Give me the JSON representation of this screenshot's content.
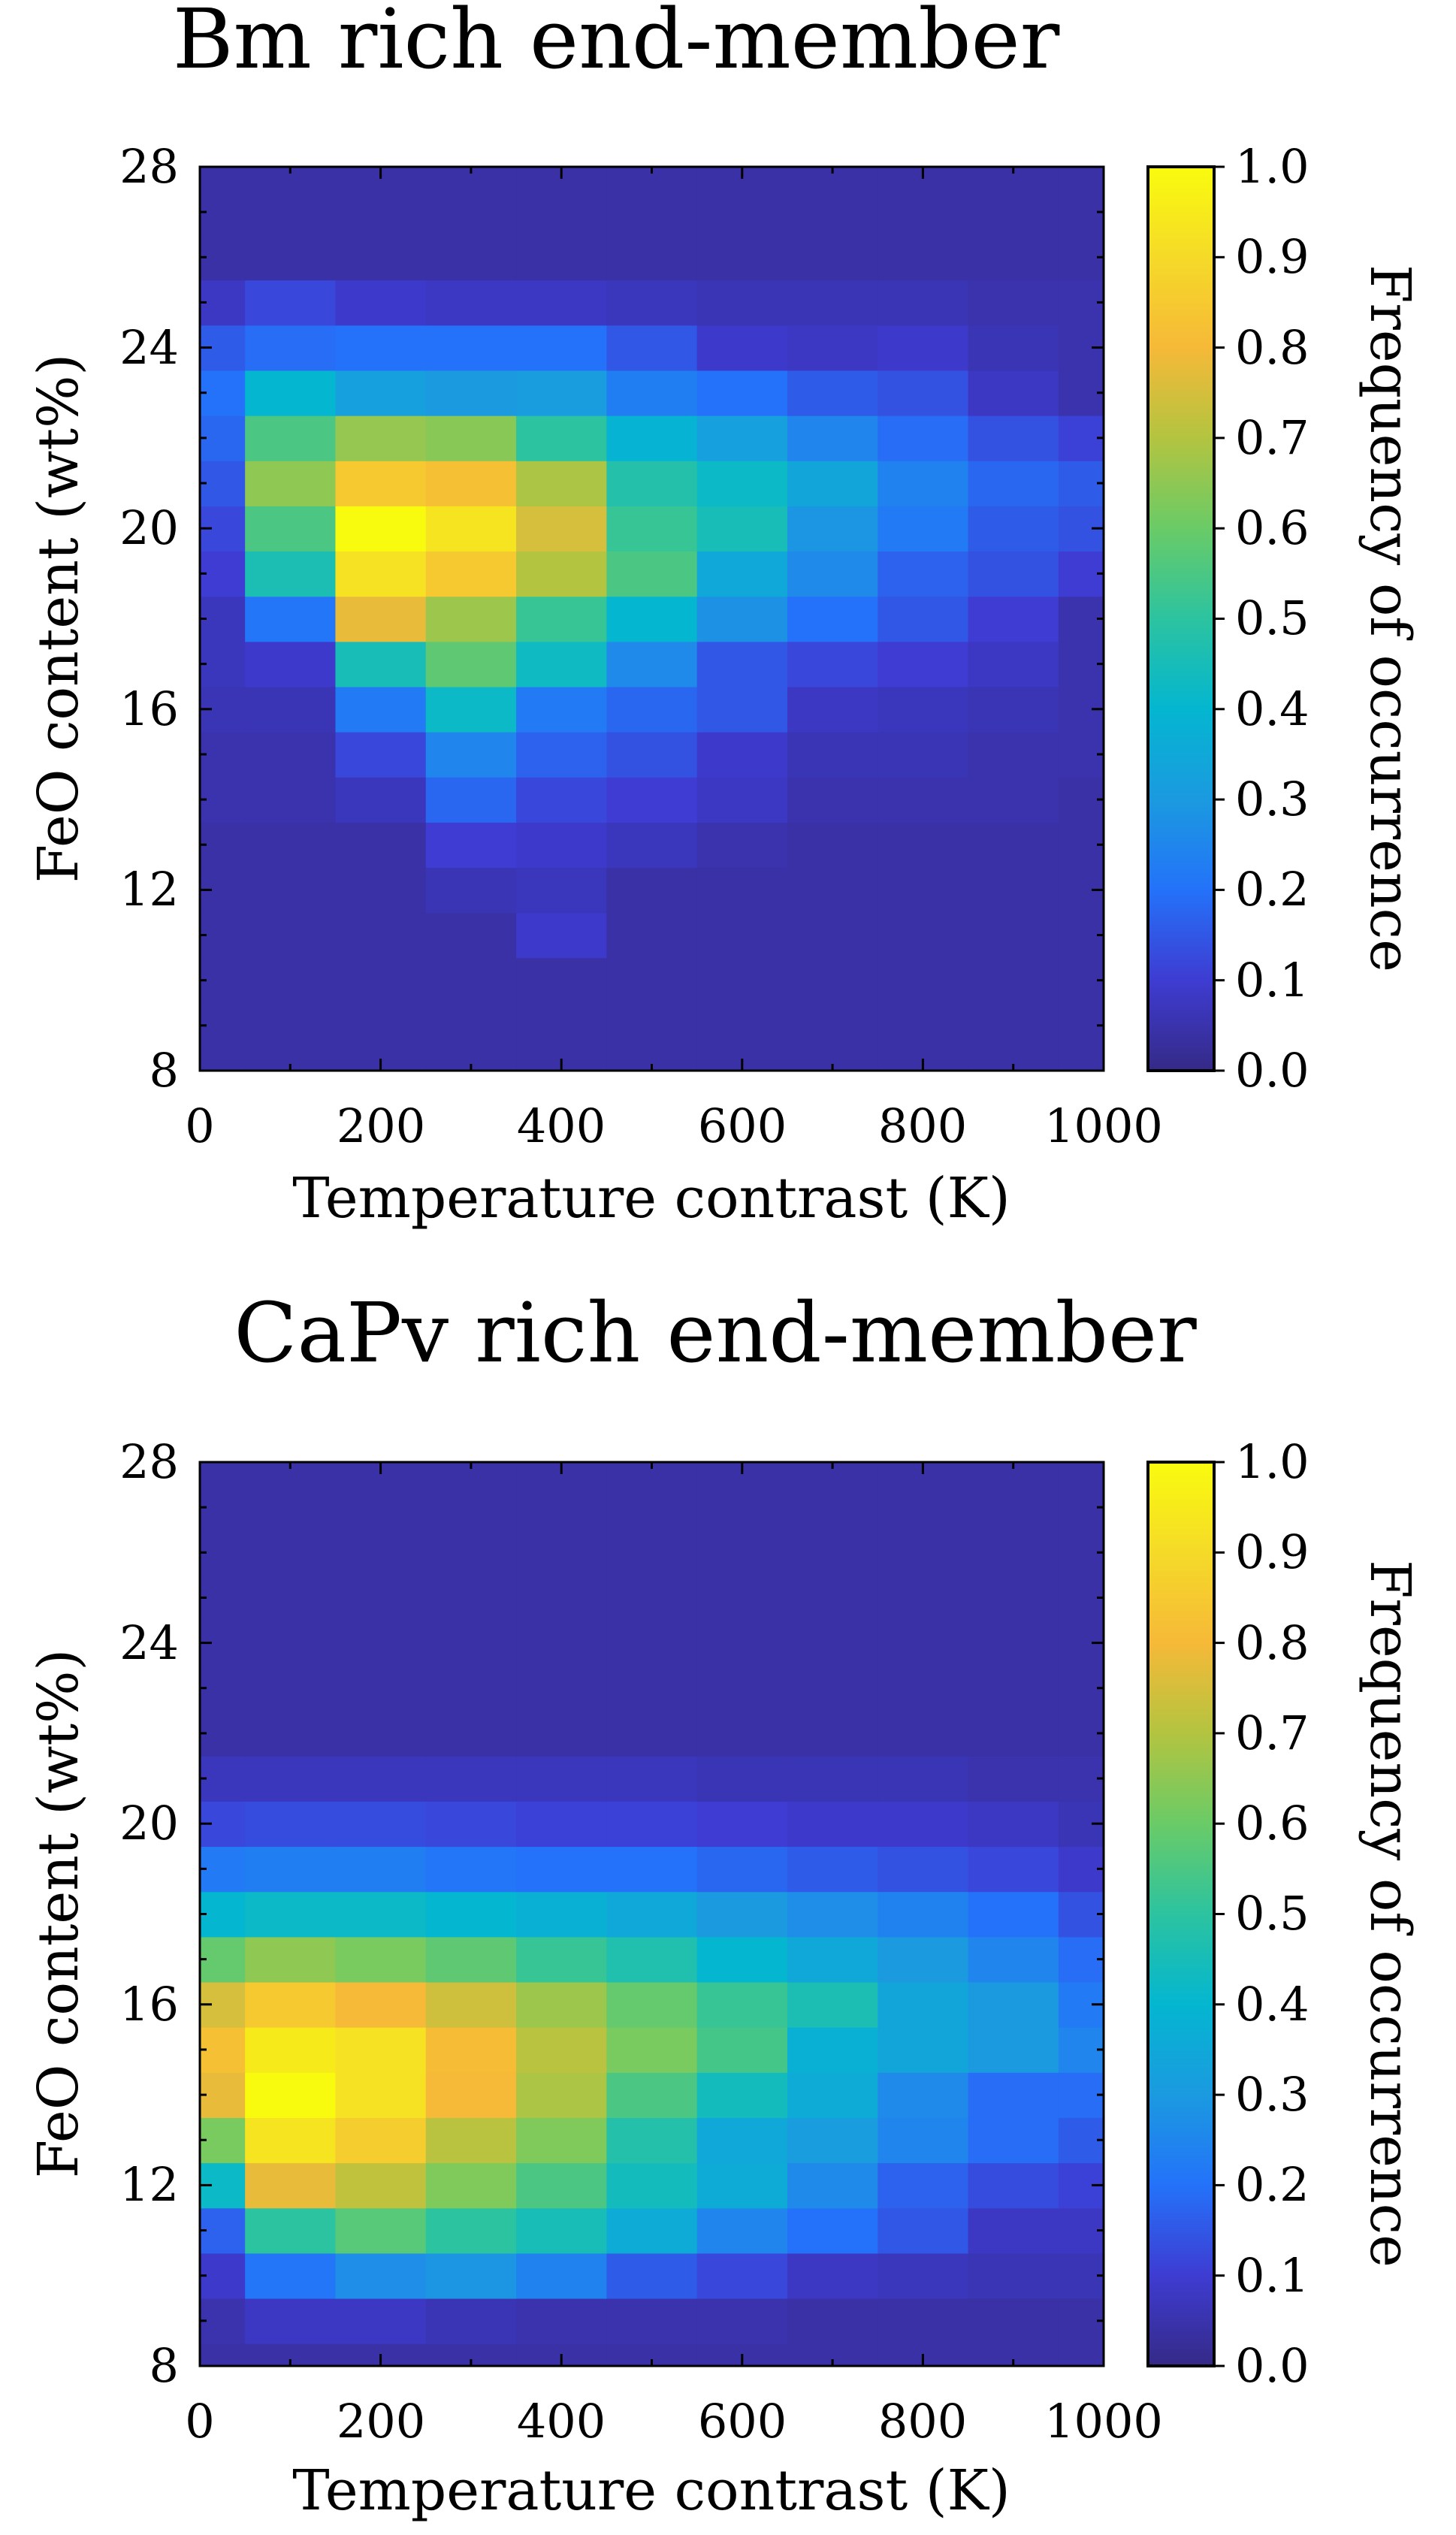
{
  "chart_data": [
    {
      "type": "heatmap",
      "title": "Bm rich end-member",
      "xlabel": "Temperature contrast (K)",
      "ylabel": "FeO content (wt%)",
      "colorbar_label": "Frequency of occurrence",
      "xlim": [
        0,
        1000
      ],
      "ylim": [
        8,
        28
      ],
      "clim": [
        0,
        1
      ],
      "xticks": [
        "0",
        "200",
        "400",
        "600",
        "800",
        "1000"
      ],
      "yticks": [
        "8",
        "12",
        "16",
        "20",
        "24",
        "28"
      ],
      "cticks": [
        "0.0",
        "0.1",
        "0.2",
        "0.3",
        "0.4",
        "0.5",
        "0.6",
        "0.7",
        "0.8",
        "0.9",
        "1.0"
      ],
      "x_centers": [
        0,
        100,
        200,
        300,
        400,
        500,
        600,
        700,
        800,
        900,
        1000
      ],
      "y_centers": [
        8,
        9,
        10,
        11,
        12,
        13,
        14,
        15,
        16,
        17,
        18,
        19,
        20,
        21,
        22,
        23,
        24,
        25,
        26,
        27,
        28
      ],
      "values": [
        [
          0.04,
          0.04,
          0.04,
          0.04,
          0.04,
          0.04,
          0.04,
          0.04,
          0.04,
          0.04,
          0.04
        ],
        [
          0.04,
          0.04,
          0.04,
          0.04,
          0.04,
          0.04,
          0.04,
          0.04,
          0.04,
          0.04,
          0.04
        ],
        [
          0.04,
          0.04,
          0.04,
          0.04,
          0.04,
          0.04,
          0.04,
          0.04,
          0.04,
          0.04,
          0.04
        ],
        [
          0.04,
          0.04,
          0.04,
          0.04,
          0.09,
          0.04,
          0.04,
          0.04,
          0.04,
          0.04,
          0.04
        ],
        [
          0.04,
          0.04,
          0.04,
          0.06,
          0.07,
          0.04,
          0.04,
          0.04,
          0.04,
          0.04,
          0.04
        ],
        [
          0.04,
          0.04,
          0.04,
          0.1,
          0.09,
          0.07,
          0.05,
          0.04,
          0.04,
          0.04,
          0.04
        ],
        [
          0.05,
          0.05,
          0.07,
          0.18,
          0.12,
          0.1,
          0.08,
          0.05,
          0.05,
          0.05,
          0.04
        ],
        [
          0.05,
          0.05,
          0.12,
          0.25,
          0.17,
          0.14,
          0.09,
          0.06,
          0.06,
          0.05,
          0.05
        ],
        [
          0.06,
          0.06,
          0.22,
          0.42,
          0.22,
          0.18,
          0.15,
          0.08,
          0.07,
          0.06,
          0.05
        ],
        [
          0.07,
          0.09,
          0.45,
          0.58,
          0.43,
          0.26,
          0.15,
          0.12,
          0.1,
          0.08,
          0.05
        ],
        [
          0.07,
          0.21,
          0.78,
          0.67,
          0.52,
          0.4,
          0.28,
          0.2,
          0.15,
          0.1,
          0.05
        ],
        [
          0.1,
          0.46,
          0.92,
          0.85,
          0.7,
          0.55,
          0.35,
          0.26,
          0.17,
          0.14,
          0.1
        ],
        [
          0.12,
          0.55,
          1.0,
          0.93,
          0.75,
          0.52,
          0.45,
          0.29,
          0.22,
          0.16,
          0.14
        ],
        [
          0.15,
          0.65,
          0.85,
          0.82,
          0.69,
          0.48,
          0.42,
          0.34,
          0.24,
          0.18,
          0.16
        ],
        [
          0.18,
          0.55,
          0.66,
          0.64,
          0.5,
          0.39,
          0.32,
          0.25,
          0.19,
          0.14,
          0.11
        ],
        [
          0.2,
          0.4,
          0.32,
          0.3,
          0.31,
          0.23,
          0.2,
          0.16,
          0.14,
          0.08,
          0.05
        ],
        [
          0.16,
          0.19,
          0.2,
          0.2,
          0.2,
          0.15,
          0.09,
          0.08,
          0.09,
          0.06,
          0.05
        ],
        [
          0.08,
          0.12,
          0.09,
          0.08,
          0.08,
          0.07,
          0.06,
          0.06,
          0.06,
          0.05,
          0.05
        ],
        [
          0.04,
          0.04,
          0.04,
          0.04,
          0.04,
          0.04,
          0.04,
          0.04,
          0.04,
          0.04,
          0.04
        ],
        [
          0.04,
          0.04,
          0.04,
          0.04,
          0.04,
          0.04,
          0.04,
          0.04,
          0.04,
          0.04,
          0.04
        ],
        [
          0.04,
          0.04,
          0.04,
          0.04,
          0.04,
          0.04,
          0.04,
          0.04,
          0.04,
          0.04,
          0.04
        ]
      ]
    },
    {
      "type": "heatmap",
      "title": "CaPv rich end-member",
      "xlabel": "Temperature contrast (K)",
      "ylabel": "FeO content (wt%)",
      "colorbar_label": "Frequency of occurrence",
      "xlim": [
        0,
        1000
      ],
      "ylim": [
        8,
        28
      ],
      "clim": [
        0,
        1
      ],
      "xticks": [
        "0",
        "200",
        "400",
        "600",
        "800",
        "1000"
      ],
      "yticks": [
        "8",
        "12",
        "16",
        "20",
        "24",
        "28"
      ],
      "cticks": [
        "0.0",
        "0.1",
        "0.2",
        "0.3",
        "0.4",
        "0.5",
        "0.6",
        "0.7",
        "0.8",
        "0.9",
        "1.0"
      ],
      "x_centers": [
        0,
        100,
        200,
        300,
        400,
        500,
        600,
        700,
        800,
        900,
        1000
      ],
      "y_centers": [
        8,
        9,
        10,
        11,
        12,
        13,
        14,
        15,
        16,
        17,
        18,
        19,
        20,
        21,
        22,
        23,
        24,
        25,
        26,
        27,
        28
      ],
      "values": [
        [
          0.04,
          0.04,
          0.04,
          0.04,
          0.04,
          0.04,
          0.04,
          0.04,
          0.04,
          0.04,
          0.04
        ],
        [
          0.05,
          0.08,
          0.08,
          0.06,
          0.05,
          0.05,
          0.05,
          0.04,
          0.04,
          0.04,
          0.04
        ],
        [
          0.09,
          0.21,
          0.27,
          0.29,
          0.24,
          0.16,
          0.12,
          0.08,
          0.07,
          0.06,
          0.06
        ],
        [
          0.17,
          0.5,
          0.57,
          0.5,
          0.45,
          0.36,
          0.25,
          0.2,
          0.15,
          0.08,
          0.08
        ],
        [
          0.42,
          0.78,
          0.72,
          0.63,
          0.55,
          0.44,
          0.36,
          0.26,
          0.17,
          0.13,
          0.11
        ],
        [
          0.62,
          0.93,
          0.86,
          0.71,
          0.63,
          0.48,
          0.35,
          0.31,
          0.25,
          0.19,
          0.16
        ],
        [
          0.78,
          1.0,
          0.92,
          0.8,
          0.69,
          0.55,
          0.44,
          0.36,
          0.26,
          0.19,
          0.19
        ],
        [
          0.82,
          0.95,
          0.92,
          0.81,
          0.71,
          0.62,
          0.54,
          0.38,
          0.34,
          0.3,
          0.25
        ],
        [
          0.75,
          0.85,
          0.8,
          0.74,
          0.67,
          0.59,
          0.52,
          0.46,
          0.34,
          0.3,
          0.22
        ],
        [
          0.59,
          0.65,
          0.62,
          0.58,
          0.52,
          0.47,
          0.4,
          0.35,
          0.3,
          0.25,
          0.19
        ],
        [
          0.4,
          0.42,
          0.42,
          0.4,
          0.38,
          0.35,
          0.3,
          0.27,
          0.24,
          0.2,
          0.14
        ],
        [
          0.22,
          0.23,
          0.23,
          0.21,
          0.2,
          0.2,
          0.18,
          0.16,
          0.14,
          0.12,
          0.09
        ],
        [
          0.12,
          0.13,
          0.13,
          0.12,
          0.11,
          0.11,
          0.1,
          0.09,
          0.09,
          0.08,
          0.06
        ],
        [
          0.07,
          0.07,
          0.07,
          0.07,
          0.07,
          0.07,
          0.06,
          0.06,
          0.06,
          0.05,
          0.05
        ],
        [
          0.04,
          0.04,
          0.04,
          0.04,
          0.04,
          0.04,
          0.04,
          0.04,
          0.04,
          0.04,
          0.04
        ],
        [
          0.04,
          0.04,
          0.04,
          0.04,
          0.04,
          0.04,
          0.04,
          0.04,
          0.04,
          0.04,
          0.04
        ],
        [
          0.04,
          0.04,
          0.04,
          0.04,
          0.04,
          0.04,
          0.04,
          0.04,
          0.04,
          0.04,
          0.04
        ],
        [
          0.04,
          0.04,
          0.04,
          0.04,
          0.04,
          0.04,
          0.04,
          0.04,
          0.04,
          0.04,
          0.04
        ],
        [
          0.04,
          0.04,
          0.04,
          0.04,
          0.04,
          0.04,
          0.04,
          0.04,
          0.04,
          0.04,
          0.04
        ],
        [
          0.04,
          0.04,
          0.04,
          0.04,
          0.04,
          0.04,
          0.04,
          0.04,
          0.04,
          0.04,
          0.04
        ],
        [
          0.04,
          0.04,
          0.04,
          0.04,
          0.04,
          0.04,
          0.04,
          0.04,
          0.04,
          0.04,
          0.04
        ]
      ]
    }
  ]
}
